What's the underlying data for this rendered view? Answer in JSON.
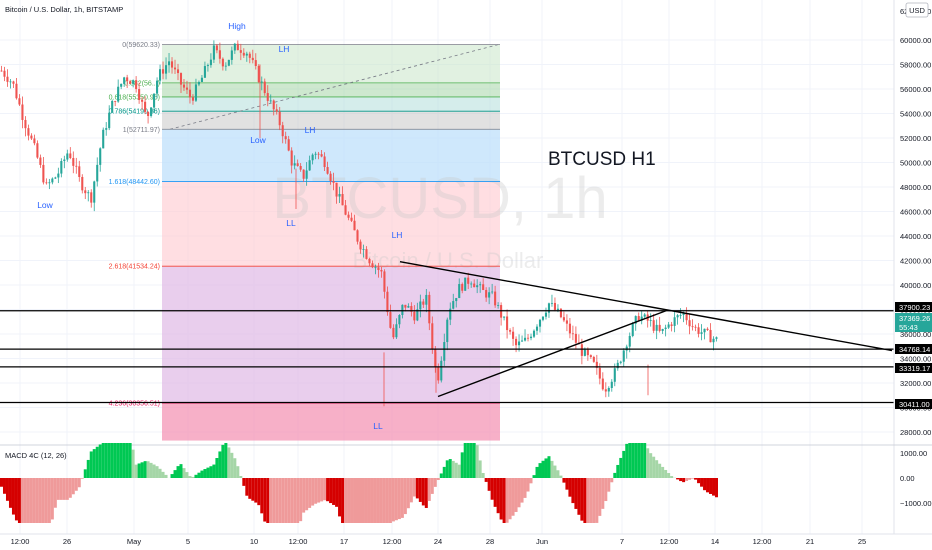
{
  "header": {
    "symbol_title": "Bitcoin / U.S. Dollar, 1h, BITSTAMP",
    "currency": "USD"
  },
  "watermark": {
    "big": "BTCUSD, 1h",
    "small": "Bitcoin / U.S. Dollar"
  },
  "chart_title": "BTCUSD H1",
  "macd": {
    "label": "MACD 4C (12, 26)",
    "axis_ticks": [
      "1000.00",
      "0.00",
      "−1000.00"
    ]
  },
  "colors": {
    "up": "#26a69a",
    "down": "#ef5350",
    "macd_up_strong": "#00c853",
    "macd_up_weak": "#a5d6a7",
    "macd_down_strong": "#d50000",
    "macd_down_weak": "#ef9a9a",
    "fib_line_grey": "#787b86",
    "fib_teal": "#26a69a",
    "fib_blue": "#42a5f5",
    "fib_red": "#f44336",
    "fib_pink": "#e91e63"
  },
  "chart_data": {
    "type": "candlestick",
    "ylim": [
      26500,
      63000
    ],
    "y_ticks": [
      60000,
      58000,
      56000,
      54000,
      52000,
      50000,
      48000,
      46000,
      44000,
      42000,
      40000,
      38000,
      36000,
      34000,
      32000,
      30000,
      28000
    ],
    "x_ticks": [
      "12:00",
      "26",
      "May",
      "5",
      "10",
      "12:00",
      "17",
      "12:00",
      "24",
      "28",
      "Jun",
      "7",
      "12:00",
      "14",
      "12:00",
      "21",
      "25"
    ],
    "right_price_labels": [
      {
        "value": "37900.23",
        "style": "black"
      },
      {
        "value": "37369.26",
        "style": "teal"
      },
      {
        "value": "55:43",
        "style": "teal"
      },
      {
        "value": "34768.14",
        "style": "black"
      },
      {
        "value": "33319.17",
        "style": "black"
      },
      {
        "value": "30411.00",
        "style": "black"
      }
    ],
    "top_price_label": "62000.00",
    "horizontal_levels": [
      37900.23,
      34768.14,
      33319.17,
      30411.0
    ],
    "fibonacci": [
      {
        "label": "0(59620.33)",
        "value": 59620.33,
        "color": "grey"
      },
      {
        "label": "0.382(56...)",
        "value": 56500,
        "color": "green"
      },
      {
        "label": "0.618(55350.96)",
        "value": 55350.96,
        "color": "green"
      },
      {
        "label": "0.786(54190.36)",
        "value": 54190.36,
        "color": "teal"
      },
      {
        "label": "1(52711.97)",
        "value": 52711.97,
        "color": "grey"
      },
      {
        "label": "1.618(48442.60)",
        "value": 48442.6,
        "color": "blue"
      },
      {
        "label": "2.618(41534.24)",
        "value": 41534.24,
        "color": "red"
      },
      {
        "label": "4.236(30356.51)",
        "value": 30356.51,
        "color": "pink"
      }
    ],
    "annotations": [
      {
        "text": "High",
        "color": "blue"
      },
      {
        "text": "LH",
        "color": "blue"
      },
      {
        "text": "Low",
        "color": "blue"
      },
      {
        "text": "LH",
        "color": "blue"
      },
      {
        "text": "LL",
        "color": "blue"
      },
      {
        "text": "LH",
        "color": "blue"
      },
      {
        "text": "LL",
        "color": "blue"
      },
      {
        "text": "Low",
        "color": "blue"
      }
    ],
    "price_path": [
      [
        0,
        57500
      ],
      [
        2,
        56500
      ],
      [
        4,
        53500
      ],
      [
        6,
        51000
      ],
      [
        8,
        48000
      ],
      [
        10,
        49000
      ],
      [
        12,
        51000
      ],
      [
        14,
        48500
      ],
      [
        16,
        47000
      ],
      [
        18,
        52000
      ],
      [
        20,
        55000
      ],
      [
        22,
        57000
      ],
      [
        24,
        56500
      ],
      [
        26,
        53500
      ],
      [
        28,
        57000
      ],
      [
        30,
        58300
      ],
      [
        32,
        56500
      ],
      [
        34,
        55200
      ],
      [
        36,
        57000
      ],
      [
        38,
        59200
      ],
      [
        40,
        58000
      ],
      [
        42,
        59500
      ],
      [
        44,
        59000
      ],
      [
        46,
        57000
      ],
      [
        48,
        55000
      ],
      [
        50,
        53000
      ],
      [
        52,
        50000
      ],
      [
        54,
        48800
      ],
      [
        56,
        51000
      ],
      [
        58,
        50000
      ],
      [
        60,
        47500
      ],
      [
        62,
        45500
      ],
      [
        64,
        43500
      ],
      [
        66,
        42000
      ],
      [
        68,
        41000
      ],
      [
        70,
        35500
      ],
      [
        72,
        38500
      ],
      [
        74,
        37500
      ],
      [
        76,
        39000
      ],
      [
        78,
        32000
      ],
      [
        80,
        38000
      ],
      [
        82,
        39800
      ],
      [
        84,
        40500
      ],
      [
        86,
        39500
      ],
      [
        88,
        39000
      ],
      [
        90,
        37000
      ],
      [
        92,
        35000
      ],
      [
        94,
        35500
      ],
      [
        96,
        37000
      ],
      [
        98,
        38500
      ],
      [
        100,
        37500
      ],
      [
        102,
        36000
      ],
      [
        104,
        34500
      ],
      [
        106,
        33500
      ],
      [
        108,
        31500
      ],
      [
        110,
        33000
      ],
      [
        112,
        35500
      ],
      [
        114,
        37500
      ],
      [
        116,
        37000
      ],
      [
        118,
        36000
      ],
      [
        120,
        37000
      ],
      [
        122,
        37700
      ],
      [
        124,
        36500
      ],
      [
        126,
        36000
      ],
      [
        128,
        35500
      ]
    ]
  }
}
